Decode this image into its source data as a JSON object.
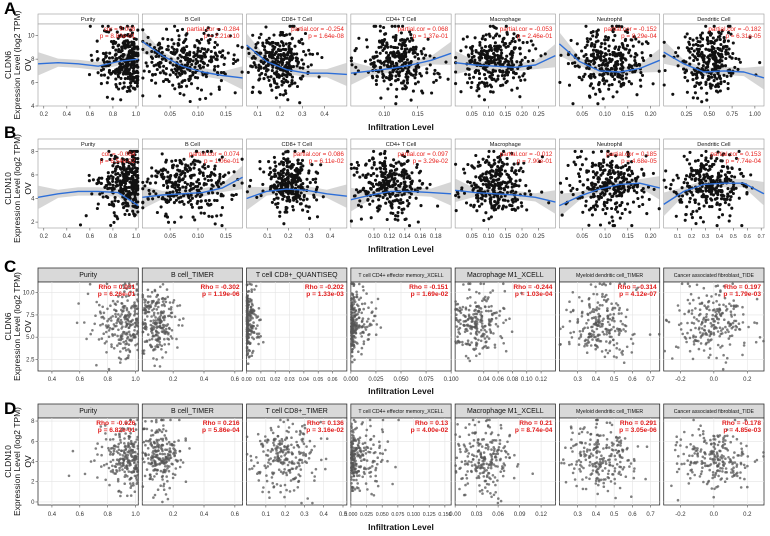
{
  "chart_data": [
    {
      "type": "scatter",
      "panel": "A",
      "style": "timer",
      "ylabel_gene": "CLDN6",
      "ylabel_unit": "Expression Level (log2 TPM)",
      "side_label": "OV",
      "xlabel": "Infiltration Level",
      "ylim": [
        4,
        11
      ],
      "yticks": [
        4,
        6,
        8,
        10
      ],
      "trend": true,
      "subplots": [
        {
          "title": "Purity",
          "stat1": "cor = 0.008",
          "stat2": "p = 8.82e-01",
          "xlim": [
            0.15,
            1.02
          ],
          "xticks": [
            0.2,
            0.4,
            0.6,
            0.8,
            1.0
          ],
          "xcenter": 0.82,
          "xspread": 0.11,
          "skew": "high",
          "trend_y": [
            7.6,
            7.7,
            7.6,
            7.4,
            7.8,
            8.0
          ]
        },
        {
          "title": "B Cell",
          "stat1": "partial.cor = -0.284",
          "stat2": "p = 2.21e-10",
          "xlim": [
            0.0,
            0.18
          ],
          "xticks": [
            0.05,
            0.1,
            0.15
          ],
          "xcenter": 0.08,
          "xspread": 0.04,
          "skew": "none",
          "trend_y": [
            9.5,
            8.3,
            7.4,
            6.9,
            6.6,
            6.4
          ]
        },
        {
          "title": "CD8+ T Cell",
          "stat1": "partial.cor = -0.254",
          "stat2": "p = 1.64e-08",
          "xlim": [
            0.05,
            0.5
          ],
          "xticks": [
            0.1,
            0.2,
            0.3,
            0.4
          ],
          "xcenter": 0.2,
          "xspread": 0.08,
          "skew": "low",
          "trend_y": [
            9.2,
            7.8,
            7.1,
            6.8,
            6.8,
            6.7
          ]
        },
        {
          "title": "CD4+ T Cell",
          "stat1": "partial.cor = 0.068",
          "stat2": "p = 1.37e-01",
          "xlim": [
            0.05,
            0.2
          ],
          "xticks": [
            0.1,
            0.15
          ],
          "xcenter": 0.12,
          "xspread": 0.025,
          "skew": "none",
          "trend_y": [
            6.8,
            7.0,
            7.2,
            7.5,
            7.9,
            8.5
          ]
        },
        {
          "title": "Macrophage",
          "stat1": "partial.cor = -0.053",
          "stat2": "p = 2.46e-01",
          "xlim": [
            0.0,
            0.3
          ],
          "xticks": [
            0.05,
            0.1,
            0.15,
            0.2,
            0.25
          ],
          "xcenter": 0.12,
          "xspread": 0.05,
          "skew": "none",
          "trend_y": [
            7.7,
            7.5,
            7.4,
            7.3,
            7.5,
            8.3
          ]
        },
        {
          "title": "Neutrophil",
          "stat1": "partial.cor = -0.152",
          "stat2": "p = 8.29e-04",
          "xlim": [
            0.0,
            0.22
          ],
          "xticks": [
            0.05,
            0.1,
            0.15,
            0.2
          ],
          "xcenter": 0.11,
          "xspread": 0.04,
          "skew": "none",
          "trend_y": [
            9.3,
            7.8,
            7.0,
            6.9,
            7.2,
            7.9
          ]
        },
        {
          "title": "Dendritic Cell",
          "stat1": "partial.cor = -0.182",
          "stat2": "p = 6.31e-05",
          "xlim": [
            0.0,
            1.1
          ],
          "xticks": [
            0.25,
            0.5,
            0.75,
            1.0
          ],
          "xcenter": 0.5,
          "xspread": 0.17,
          "skew": "none",
          "trend_y": [
            8.6,
            7.6,
            6.9,
            7.0,
            6.9,
            6.4
          ]
        }
      ]
    },
    {
      "type": "scatter",
      "panel": "B",
      "style": "timer",
      "ylabel_gene": "CLDN10",
      "ylabel_unit": "Expression Level (log2 TPM)",
      "side_label": "OV",
      "xlabel": "Infiltration Level",
      "ylim": [
        1.5,
        8.2
      ],
      "yticks": [
        2,
        4,
        6,
        8
      ],
      "trend": true,
      "subplots": [
        {
          "title": "Purity",
          "stat1": "cor = -0.084",
          "stat2": "p = 6.54e-02",
          "xlim": [
            0.15,
            1.02
          ],
          "xticks": [
            0.2,
            0.4,
            0.6,
            0.8,
            1.0
          ],
          "xcenter": 0.82,
          "xspread": 0.11,
          "skew": "high",
          "trend_y": [
            4.1,
            4.4,
            4.6,
            4.6,
            4.5,
            3.4
          ]
        },
        {
          "title": "B Cell",
          "stat1": "partial.cor = 0.074",
          "stat2": "p = 1.06e-01",
          "xlim": [
            0.0,
            0.18
          ],
          "xticks": [
            0.05,
            0.1,
            0.15
          ],
          "xcenter": 0.08,
          "xspread": 0.04,
          "skew": "none",
          "trend_y": [
            4.1,
            4.3,
            4.4,
            4.5,
            4.9,
            5.8
          ]
        },
        {
          "title": "CD8+ T Cell",
          "stat1": "partial.cor = 0.086",
          "stat2": "p = 6.11e-02",
          "xlim": [
            0.0,
            0.48
          ],
          "xticks": [
            0.1,
            0.2,
            0.3,
            0.4
          ],
          "xcenter": 0.2,
          "xspread": 0.08,
          "skew": "low",
          "trend_y": [
            4.0,
            4.6,
            4.8,
            4.7,
            4.4,
            4.2
          ]
        },
        {
          "title": "CD4+ T Cell",
          "stat1": "partial.cor = 0.097",
          "stat2": "p = 3.29e-02",
          "xlim": [
            0.07,
            0.2
          ],
          "xticks": [
            0.1,
            0.12,
            0.14,
            0.16,
            0.18
          ],
          "xcenter": 0.12,
          "xspread": 0.022,
          "skew": "none",
          "trend_y": [
            3.9,
            4.3,
            4.6,
            4.6,
            4.5,
            4.4
          ]
        },
        {
          "title": "Macrophage",
          "stat1": "partial.cor = -0.012",
          "stat2": "p = 7.90e-01",
          "xlim": [
            0.0,
            0.3
          ],
          "xticks": [
            0.05,
            0.1,
            0.15,
            0.2,
            0.25
          ],
          "xcenter": 0.12,
          "xspread": 0.05,
          "skew": "none",
          "trend_y": [
            4.7,
            4.5,
            4.4,
            4.3,
            4.1,
            3.7
          ]
        },
        {
          "title": "Neutrophil",
          "stat1": "partial.cor = 0.185",
          "stat2": "p = 4.68e-05",
          "xlim": [
            0.0,
            0.22
          ],
          "xticks": [
            0.05,
            0.1,
            0.15,
            0.2
          ],
          "xcenter": 0.11,
          "xspread": 0.04,
          "skew": "none",
          "trend_y": [
            3.4,
            4.2,
            4.8,
            5.2,
            5.3,
            4.9
          ]
        },
        {
          "title": "Dendritic Cell",
          "stat1": "partial.cor = 0.153",
          "stat2": "p = 7.74e-04",
          "xlim": [
            0.0,
            0.72
          ],
          "xticks": [
            0.1,
            0.2,
            0.3,
            0.4,
            0.5,
            0.6,
            0.7
          ],
          "xcenter": 0.33,
          "xspread": 0.12,
          "skew": "none",
          "trend_y": [
            3.5,
            4.6,
            5.2,
            5.3,
            5.3,
            4.4
          ]
        }
      ]
    },
    {
      "type": "scatter",
      "panel": "C",
      "style": "timer2",
      "ylabel_gene": "CLDN6",
      "ylabel_unit": "Expression Level (log2 TPM)",
      "side_label": "OV",
      "xlabel": "Infiltration Level",
      "ylim": [
        1.2,
        11.2
      ],
      "yticks": [
        2.5,
        5.0,
        7.5,
        10.0
      ],
      "trend": false,
      "subplots": [
        {
          "title": "Purity",
          "stat1": "Rho = 0.031",
          "stat2": "p = 6.26e-01",
          "xlim": [
            0.3,
            1.02
          ],
          "xticks": [
            0.4,
            0.6,
            0.8,
            1.0
          ],
          "xcenter": 0.83,
          "xspread": 0.1,
          "skew": "high"
        },
        {
          "title": "B cell_TIMER",
          "stat1": "Rho = -0.302",
          "stat2": "p = 1.19e-06",
          "xlim": [
            0.0,
            0.65
          ],
          "xticks": [
            0.2,
            0.4,
            0.6
          ],
          "xcenter": 0.1,
          "xspread": 0.08,
          "skew": "low"
        },
        {
          "title": "T cell CD8+_QUANTISEQ",
          "stat1": "Rho = -0.202",
          "stat2": "p = 1.33e-03",
          "xlim": [
            0.0,
            0.07
          ],
          "xticks": [
            0.0,
            0.01,
            0.02,
            0.03,
            0.04,
            0.05,
            0.06
          ],
          "xcenter": 0.004,
          "xspread": 0.004,
          "skew": "zero"
        },
        {
          "title": "T cell CD4+ effector memory_XCELL",
          "stat1": "Rho = -0.151",
          "stat2": "p = 1.69e-02",
          "xlim": [
            0.0,
            0.1
          ],
          "xticks": [
            0.0,
            0.025,
            0.05,
            0.075,
            0.1
          ],
          "xcenter": 0.006,
          "xspread": 0.012,
          "skew": "zero"
        },
        {
          "title": "Macrophage M1_XCELL",
          "stat1": "Rho = -0.244",
          "stat2": "p = 1.03e-04",
          "xlim": [
            0.0,
            0.14
          ],
          "xticks": [
            0.04,
            0.06,
            0.08,
            0.1,
            0.12
          ],
          "xcenter": 0.03,
          "xspread": 0.025,
          "skew": "low"
        },
        {
          "title": "Myeloid dendritic cell_TIMER",
          "stat1": "Rho = -0.314",
          "stat2": "p = 4.12e-07",
          "xlim": [
            0.2,
            0.75
          ],
          "xticks": [
            0.3,
            0.4,
            0.5,
            0.6,
            0.7
          ],
          "xcenter": 0.42,
          "xspread": 0.09,
          "skew": "none"
        },
        {
          "title": "Cancer associated fibroblast_TIDE",
          "stat1": "Rho = 0.197",
          "stat2": "p = 1.79e-03",
          "xlim": [
            -0.3,
            0.3
          ],
          "xticks": [
            -0.2,
            0.0,
            0.2
          ],
          "xcenter": 0.0,
          "xspread": 0.11,
          "skew": "none"
        }
      ]
    },
    {
      "type": "scatter",
      "panel": "D",
      "style": "timer2",
      "ylabel_gene": "CLDN10",
      "ylabel_unit": "Expression Level (log2 TPM)",
      "side_label": "OV",
      "xlabel": "Infiltration Level",
      "ylim": [
        -0.3,
        8.3
      ],
      "yticks": [
        0,
        2,
        4,
        6,
        8
      ],
      "trend": false,
      "subplots": [
        {
          "title": "Purity",
          "stat1": "Rho = -0.026",
          "stat2": "p = 6.82e-01",
          "xlim": [
            0.3,
            1.02
          ],
          "xticks": [
            0.4,
            0.6,
            0.8,
            1.0
          ],
          "xcenter": 0.83,
          "xspread": 0.1,
          "skew": "high"
        },
        {
          "title": "B cell_TIMER",
          "stat1": "Rho = 0.216",
          "stat2": "p = 5.86e-04",
          "xlim": [
            0.0,
            0.65
          ],
          "xticks": [
            0.2,
            0.4,
            0.6
          ],
          "xcenter": 0.12,
          "xspread": 0.08,
          "skew": "low"
        },
        {
          "title": "T cell CD8+_TIMER",
          "stat1": "Rho = 0.136",
          "stat2": "p = 3.16e-02",
          "xlim": [
            0.0,
            0.52
          ],
          "xticks": [
            0.1,
            0.2,
            0.3,
            0.4,
            0.5
          ],
          "xcenter": 0.2,
          "xspread": 0.09,
          "skew": "none"
        },
        {
          "title": "T cell CD4+ effector memory_XCELL",
          "stat1": "Rho = 0.13",
          "stat2": "p = 4.00e-02",
          "xlim": [
            0.0,
            0.16
          ],
          "xticks": [
            0.0,
            0.025,
            0.05,
            0.075,
            0.1,
            0.125,
            0.15
          ],
          "xcenter": 0.03,
          "xspread": 0.03,
          "skew": "zero"
        },
        {
          "title": "Macrophage M1_XCELL",
          "stat1": "Rho = 0.21",
          "stat2": "p = 8.74e-04",
          "xlim": [
            0.0,
            0.14
          ],
          "xticks": [
            0.0,
            0.03,
            0.06,
            0.09,
            0.12
          ],
          "xcenter": 0.04,
          "xspread": 0.025,
          "skew": "low"
        },
        {
          "title": "Myeloid dendritic cell_TIMER",
          "stat1": "Rho = 0.291",
          "stat2": "p = 3.05e-06",
          "xlim": [
            0.2,
            0.75
          ],
          "xticks": [
            0.3,
            0.4,
            0.5,
            0.6,
            0.7
          ],
          "xcenter": 0.42,
          "xspread": 0.09,
          "skew": "none"
        },
        {
          "title": "Cancer associated fibroblast_TIDE",
          "stat1": "Rho = -0.178",
          "stat2": "p = 4.85e-03",
          "xlim": [
            -0.3,
            0.3
          ],
          "xticks": [
            -0.2,
            0.0,
            0.2
          ],
          "xcenter": 0.0,
          "xspread": 0.11,
          "skew": "none"
        }
      ]
    }
  ]
}
